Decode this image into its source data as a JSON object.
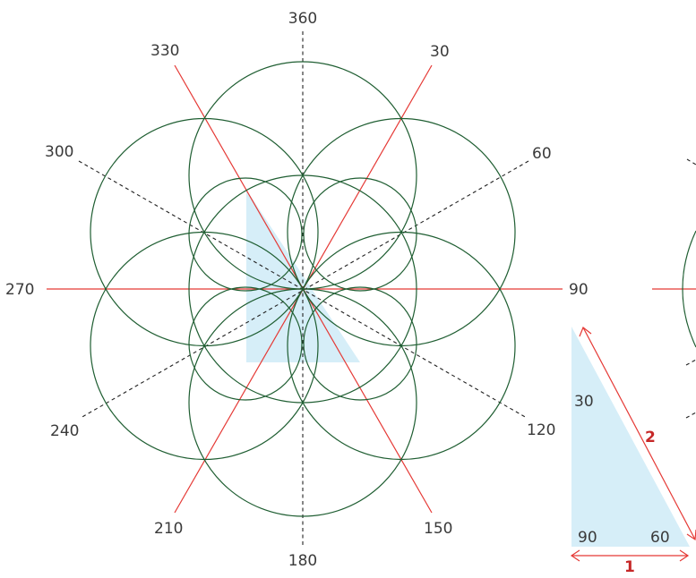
{
  "diagram": {
    "angle_labels": [
      {
        "id": "360",
        "text": "360"
      },
      {
        "id": "30",
        "text": "30"
      },
      {
        "id": "60",
        "text": "60"
      },
      {
        "id": "90",
        "text": "90"
      },
      {
        "id": "120",
        "text": "120"
      },
      {
        "id": "150",
        "text": "150"
      },
      {
        "id": "180",
        "text": "180"
      },
      {
        "id": "210",
        "text": "210"
      },
      {
        "id": "240",
        "text": "240"
      },
      {
        "id": "270",
        "text": "270"
      },
      {
        "id": "300",
        "text": "300"
      },
      {
        "id": "330",
        "text": "330"
      }
    ],
    "triangle": {
      "angle_top": "30",
      "angle_bottom_left": "90",
      "angle_bottom_right": "60",
      "hypotenuse": "2",
      "base": "1"
    }
  },
  "colors": {
    "circle": "#1f5e32",
    "red_line": "#e53935",
    "dashed_line": "#222222",
    "fill": "#d6eef8",
    "side_label": "#c62828",
    "text": "#3a3a3a"
  }
}
